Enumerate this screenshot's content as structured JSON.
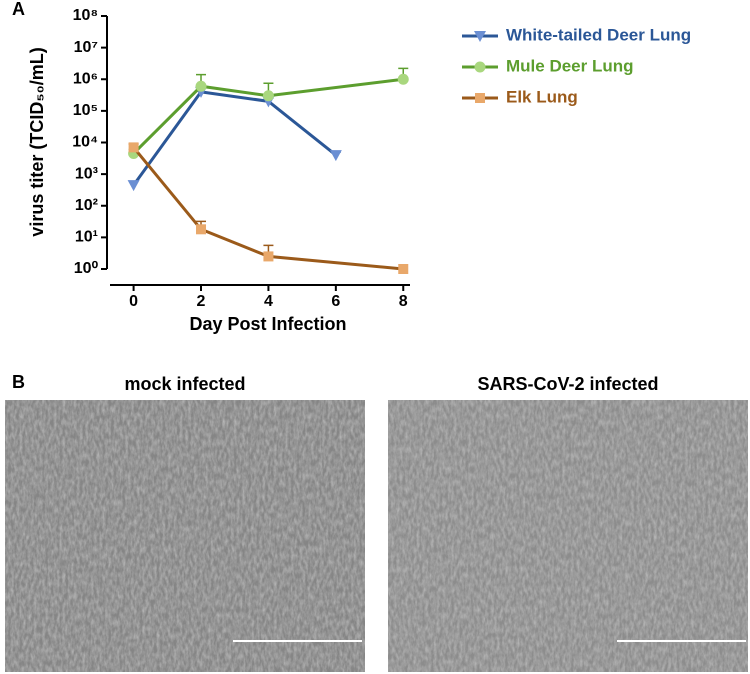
{
  "panels": [
    "A",
    "B"
  ],
  "chart_data": {
    "type": "line",
    "xlabel": "Day Post Infection",
    "ylabel": "virus titer (TCID₅₀/mL)",
    "x": [
      0,
      2,
      4,
      6,
      8
    ],
    "xlim": [
      -0.7,
      8.2
    ],
    "xticks": [
      0,
      2,
      4,
      6,
      8
    ],
    "ylim": [
      1,
      100000000
    ],
    "log_y": true,
    "yticks": [
      {
        "value": 1,
        "label": "10⁰"
      },
      {
        "value": 10,
        "label": "10¹"
      },
      {
        "value": 100,
        "label": "10²"
      },
      {
        "value": 1000,
        "label": "10³"
      },
      {
        "value": 10000,
        "label": "10⁴"
      },
      {
        "value": 100000,
        "label": "10⁵"
      },
      {
        "value": 1000000,
        "label": "10⁶"
      },
      {
        "value": 10000000,
        "label": "10⁷"
      },
      {
        "value": 100000000,
        "label": "10⁸"
      }
    ],
    "legend": "top-right",
    "series": [
      {
        "name": "White-tailed Deer Lung",
        "color": "#2b5797",
        "marker_color": "#6b8fd3",
        "marker": "triangle-down",
        "values": [
          450,
          400000,
          200000,
          4000,
          null
        ],
        "error_upper": [
          null,
          600000,
          250000,
          5000,
          null
        ]
      },
      {
        "name": "Mule Deer Lung",
        "color": "#5c9e2e",
        "marker_color": "#a9d77e",
        "marker": "circle",
        "values": [
          4500,
          600000,
          300000,
          null,
          1000000
        ],
        "error_upper": [
          6000,
          1400000,
          750000,
          null,
          2200000
        ]
      },
      {
        "name": "Elk Lung",
        "color": "#9b5a1a",
        "marker_color": "#e9a86a",
        "marker": "square",
        "values": [
          7000,
          18,
          2.5,
          null,
          1
        ],
        "error_upper": [
          9000,
          32,
          5.6,
          null,
          null
        ]
      }
    ]
  },
  "micrographs": [
    {
      "title": "mock infected"
    },
    {
      "title": "SARS-CoV-2 infected"
    }
  ]
}
